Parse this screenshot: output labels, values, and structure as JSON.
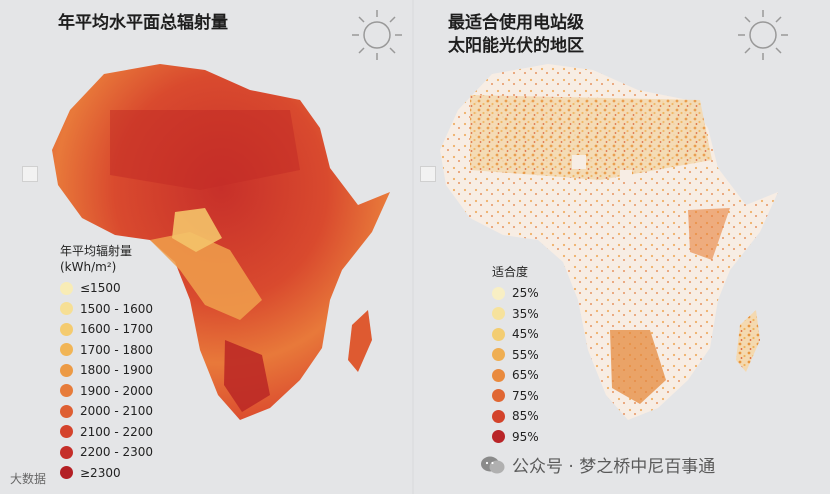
{
  "left": {
    "title": "年平均水平面总辐射量",
    "legend_title": "年平均辐射量",
    "legend_unit": "(kWh/m²)",
    "legend": [
      {
        "label": "≤1500",
        "color": "#f8ecb6"
      },
      {
        "label": "1500 - 1600",
        "color": "#f6df95"
      },
      {
        "label": "1600 - 1700",
        "color": "#f4cb6f"
      },
      {
        "label": "1700 - 1800",
        "color": "#f1b556"
      },
      {
        "label": "1800 - 1900",
        "color": "#ec9a45"
      },
      {
        "label": "1900 - 2000",
        "color": "#e67b3a"
      },
      {
        "label": "2000 - 2100",
        "color": "#de5e32"
      },
      {
        "label": "2100 - 2200",
        "color": "#d4432c"
      },
      {
        "label": "2200 - 2300",
        "color": "#c52e29"
      },
      {
        "label": "≥2300",
        "color": "#b31f24"
      }
    ]
  },
  "right": {
    "title_line1": "最适合使用电站级",
    "title_line2": "太阳能光伏的地区",
    "legend_title": "适合度",
    "legend": [
      {
        "label": "25%",
        "color": "#f8efc4"
      },
      {
        "label": "35%",
        "color": "#f6e29c"
      },
      {
        "label": "45%",
        "color": "#f3cd72"
      },
      {
        "label": "55%",
        "color": "#efae52"
      },
      {
        "label": "65%",
        "color": "#e98a3e"
      },
      {
        "label": "75%",
        "color": "#e06733"
      },
      {
        "label": "85%",
        "color": "#d3432b"
      },
      {
        "label": "95%",
        "color": "#b92528"
      }
    ]
  },
  "watermark": {
    "text": "公众号 · 梦之桥中尼百事通"
  },
  "corner_watermark": {
    "text": "大数据"
  }
}
